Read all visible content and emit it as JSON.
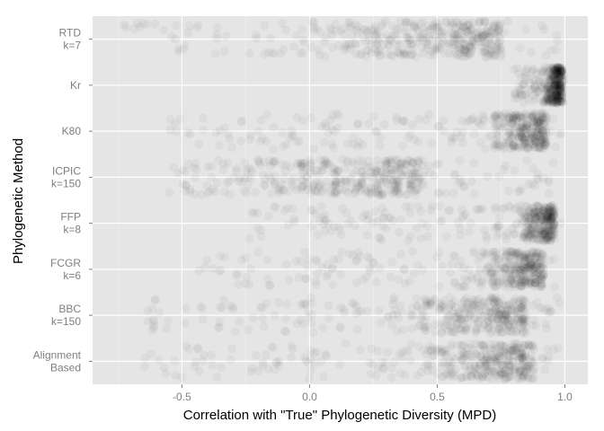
{
  "chart_data": {
    "type": "scatter",
    "title": "",
    "xlabel": "Correlation with \"True\" Phylogenetic Diversity (MPD)",
    "ylabel": "Phylogenetic Method",
    "xlim": [
      -0.85,
      1.09
    ],
    "x_ticks": [
      -0.5,
      0.0,
      0.5,
      1.0
    ],
    "x_tick_labels": [
      "-0.5",
      "0.0",
      "0.5",
      "1.0"
    ],
    "grid": true,
    "legend": "none",
    "colors": {
      "panel": "#e5e5e5",
      "grid_major": "#ffffff",
      "grid_minor": "#f2f2f2",
      "point": "#000000",
      "tick_text": "#7f7f7f"
    },
    "categories": [
      {
        "lines": [
          "RTD",
          "k=7"
        ],
        "range": [
          -0.75,
          0.98
        ],
        "center": 0.75,
        "spread": 0.32
      },
      {
        "lines": [
          "Kr"
        ],
        "range": [
          0.8,
          1.0
        ],
        "center": 0.99,
        "spread": 0.03
      },
      {
        "lines": [
          "K80"
        ],
        "range": [
          -0.55,
          1.0
        ],
        "center": 0.93,
        "spread": 0.12
      },
      {
        "lines": [
          "ICPIC",
          "k=150"
        ],
        "range": [
          -0.55,
          0.98
        ],
        "center": 0.45,
        "spread": 0.35
      },
      {
        "lines": [
          "FFP",
          "k=8"
        ],
        "range": [
          -0.25,
          0.99
        ],
        "center": 0.96,
        "spread": 0.07
      },
      {
        "lines": [
          "FCGR",
          "k=6"
        ],
        "range": [
          -0.45,
          0.99
        ],
        "center": 0.92,
        "spread": 0.12
      },
      {
        "lines": [
          "BBC",
          "k=150"
        ],
        "range": [
          -0.65,
          0.98
        ],
        "center": 0.85,
        "spread": 0.22
      },
      {
        "lines": [
          "Alignment",
          "Based"
        ],
        "range": [
          -0.65,
          1.0
        ],
        "center": 0.88,
        "spread": 0.2
      }
    ]
  }
}
